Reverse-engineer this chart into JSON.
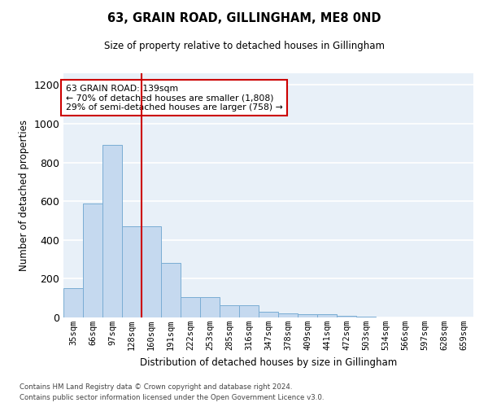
{
  "title": "63, GRAIN ROAD, GILLINGHAM, ME8 0ND",
  "subtitle": "Size of property relative to detached houses in Gillingham",
  "xlabel": "Distribution of detached houses by size in Gillingham",
  "ylabel": "Number of detached properties",
  "bar_color": "#c5d9ef",
  "bar_edge_color": "#7aadd4",
  "background_color": "#e8f0f8",
  "categories": [
    "35sqm",
    "66sqm",
    "97sqm",
    "128sqm",
    "160sqm",
    "191sqm",
    "222sqm",
    "253sqm",
    "285sqm",
    "316sqm",
    "347sqm",
    "378sqm",
    "409sqm",
    "441sqm",
    "472sqm",
    "503sqm",
    "534sqm",
    "566sqm",
    "597sqm",
    "628sqm",
    "659sqm"
  ],
  "values": [
    150,
    590,
    890,
    470,
    470,
    280,
    105,
    105,
    62,
    62,
    28,
    20,
    15,
    15,
    10,
    5,
    0,
    0,
    0,
    0,
    0
  ],
  "ylim": [
    0,
    1260
  ],
  "yticks": [
    0,
    200,
    400,
    600,
    800,
    1000,
    1200
  ],
  "vline_x": 3.5,
  "annotation_text": "63 GRAIN ROAD: 139sqm\n← 70% of detached houses are smaller (1,808)\n29% of semi-detached houses are larger (758) →",
  "annotation_box_color": "#ffffff",
  "annotation_box_edge": "#cc0000",
  "vline_color": "#cc0000",
  "footer_line1": "Contains HM Land Registry data © Crown copyright and database right 2024.",
  "footer_line2": "Contains public sector information licensed under the Open Government Licence v3.0."
}
